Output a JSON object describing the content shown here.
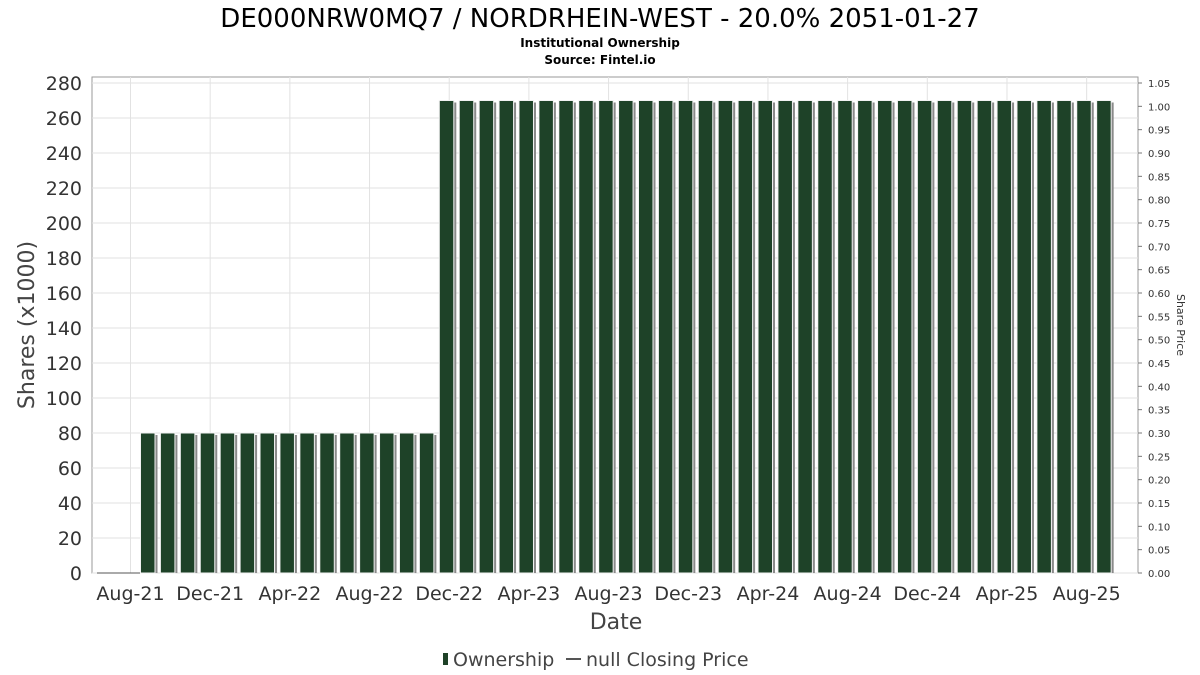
{
  "chart_data": {
    "type": "bar",
    "title": "DE000NRW0MQ7 / NORDRHEIN-WEST - 20.0% 2051-01-27",
    "subtitle_lines": [
      "Institutional Ownership",
      "Source: Fintel.io"
    ],
    "xlabel": "Date",
    "ylabel": "Shares (x1000)",
    "ylabel_right": "Share Price",
    "ylim": [
      0,
      280
    ],
    "ylim_right": [
      0,
      1.05
    ],
    "yticks": [
      "0",
      "20",
      "40",
      "60",
      "80",
      "100",
      "120",
      "140",
      "160",
      "180",
      "200",
      "220",
      "240",
      "260",
      "280"
    ],
    "yticks_right": [
      "0.00",
      "0.05",
      "0.10",
      "0.15",
      "0.20",
      "0.25",
      "0.30",
      "0.35",
      "0.40",
      "0.45",
      "0.50",
      "0.55",
      "0.60",
      "0.65",
      "0.70",
      "0.75",
      "0.80",
      "0.85",
      "0.90",
      "0.95",
      "1.00",
      "1.05"
    ],
    "xticks": [
      "Aug-21",
      "Dec-21",
      "Apr-22",
      "Aug-22",
      "Dec-22",
      "Apr-23",
      "Aug-23",
      "Dec-23",
      "Apr-24",
      "Aug-24",
      "Dec-24",
      "Apr-25",
      "Aug-25"
    ],
    "grid": true,
    "legend_position": "bottom",
    "legend": [
      "Ownership",
      "null Closing Price"
    ],
    "series": [
      {
        "name": "Ownership",
        "color": "#1e4228",
        "values": [
          80,
          80,
          80,
          80,
          80,
          80,
          80,
          80,
          80,
          80,
          80,
          80,
          80,
          80,
          80,
          270,
          270,
          270,
          270,
          270,
          270,
          270,
          270,
          270,
          270,
          270,
          270,
          270,
          270,
          270,
          270,
          270,
          270,
          270,
          270,
          270,
          270,
          270,
          270,
          270,
          270,
          270,
          270,
          270,
          270,
          270,
          270,
          270,
          270
        ]
      }
    ]
  }
}
